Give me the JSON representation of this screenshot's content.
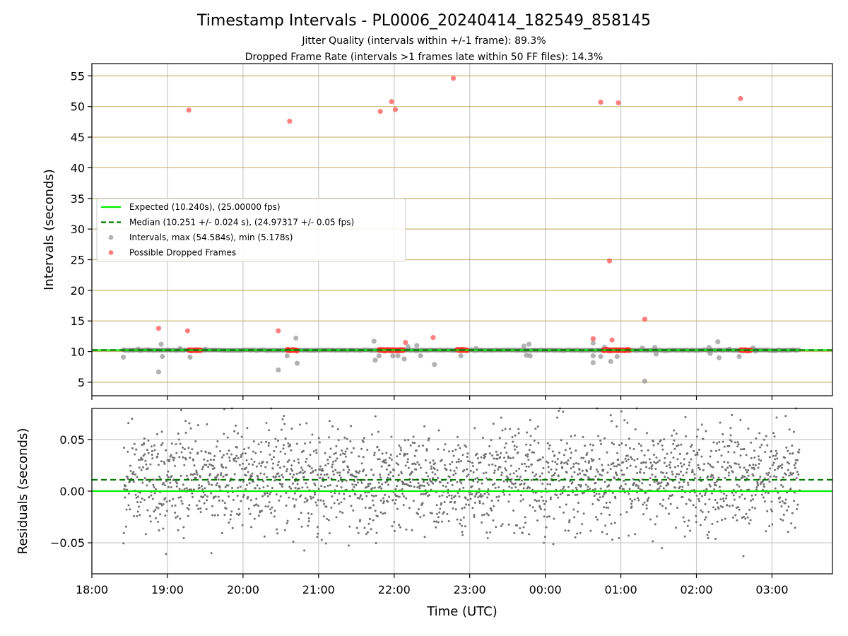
{
  "title": "Timestamp Intervals - PL0006_20240414_182549_858145",
  "subtitle_1": "Jitter Quality (intervals within +/-1 frame): 89.3%",
  "subtitle_2": "Dropped Frame Rate (intervals >1 frames late within 50 FF files): 14.3%",
  "chart_data": [
    {
      "type": "scatter",
      "panel": "top",
      "ylabel": "Intervals (seconds)",
      "xlabel": "",
      "xlim_hours": [
        18.0,
        27.8
      ],
      "ylim": [
        2.8,
        57.0
      ],
      "y_ticks": [
        5,
        10,
        15,
        20,
        25,
        30,
        35,
        40,
        45,
        50,
        55
      ],
      "y_tick_labels": [
        "5",
        "10",
        "15",
        "20",
        "25",
        "30",
        "35",
        "40",
        "45",
        "50",
        "55"
      ],
      "grid": true,
      "horizontal_grid_color": "#c8b46e",
      "legend_position": "center-left",
      "legend": [
        {
          "label": "Expected (10.240s), (25.00000 fps)",
          "kind": "line",
          "color": "#00ee00"
        },
        {
          "label": "Median (10.251 +/- 0.024 s), (24.97317 +/- 0.05 fps)",
          "kind": "dashed",
          "color": "#007a00"
        },
        {
          "label": "Intervals, max (54.584s), min (5.178s)",
          "kind": "point",
          "color": "#808080"
        },
        {
          "label": "Possible Dropped Frames",
          "kind": "point",
          "color": "#ff2a2a"
        }
      ],
      "series": [
        {
          "name": "Expected (10.240s), (25.00000 fps)",
          "kind": "hline",
          "y": 10.24,
          "color": "#00ee00"
        },
        {
          "name": "Median (10.251 +/- 0.024 s), (24.97317 +/- 0.05 fps)",
          "kind": "hline-dashed",
          "y": 10.251,
          "color": "#007a00"
        },
        {
          "name": "Intervals, max (54.584s), min (5.178s)",
          "color": "#808080",
          "dense_band": {
            "x_start": "18:25",
            "x_end": "03:22",
            "y": 10.24
          },
          "points": [
            [
              "18:25",
              9.1
            ],
            [
              "18:37",
              10.4
            ],
            [
              "18:53",
              6.7
            ],
            [
              "18:55",
              11.2
            ],
            [
              "18:56",
              9.2
            ],
            [
              "18:45",
              10.3
            ],
            [
              "19:10",
              10.5
            ],
            [
              "19:18",
              9.1
            ],
            [
              "19:30",
              10.4
            ],
            [
              "20:28",
              7.0
            ],
            [
              "20:35",
              9.3
            ],
            [
              "20:42",
              12.2
            ],
            [
              "20:43",
              8.1
            ],
            [
              "21:44",
              11.7
            ],
            [
              "21:45",
              8.6
            ],
            [
              "21:48",
              9.3
            ],
            [
              "21:59",
              9.3
            ],
            [
              "22:03",
              9.3
            ],
            [
              "22:08",
              8.8
            ],
            [
              "22:11",
              10.8
            ],
            [
              "22:18",
              11.0
            ],
            [
              "22:21",
              9.3
            ],
            [
              "22:32",
              7.9
            ],
            [
              "22:53",
              9.3
            ],
            [
              "23:05",
              10.5
            ],
            [
              "23:43",
              10.9
            ],
            [
              "23:45",
              9.4
            ],
            [
              "23:47",
              11.2
            ],
            [
              "23:48",
              9.3
            ],
            [
              "00:38",
              11.4
            ],
            [
              "00:38",
              9.3
            ],
            [
              "00:38",
              8.2
            ],
            [
              "00:44",
              9.2
            ],
            [
              "00:47",
              10.7
            ],
            [
              "00:52",
              8.4
            ],
            [
              "00:57",
              9.2
            ],
            [
              "01:17",
              10.6
            ],
            [
              "01:19",
              5.2
            ],
            [
              "01:27",
              10.7
            ],
            [
              "01:28",
              9.6
            ],
            [
              "02:10",
              10.7
            ],
            [
              "02:11",
              9.7
            ],
            [
              "02:17",
              11.6
            ],
            [
              "02:18",
              9.0
            ],
            [
              "02:26",
              10.4
            ],
            [
              "02:34",
              9.2
            ],
            [
              "02:45",
              10.6
            ],
            [
              "02:47",
              10.1
            ]
          ]
        },
        {
          "name": "Possible Dropped Frames",
          "color": "#ff2a2a",
          "clusters": [
            {
              "from": "19:17",
              "to": "19:27",
              "y": 10.24
            },
            {
              "from": "20:35",
              "to": "20:43",
              "y": 10.24
            },
            {
              "from": "21:48",
              "to": "22:08",
              "y": 10.24
            },
            {
              "from": "22:50",
              "to": "22:58",
              "y": 10.24
            },
            {
              "from": "00:46",
              "to": "01:07",
              "y": 10.24
            },
            {
              "from": "02:35",
              "to": "02:43",
              "y": 10.24
            }
          ],
          "points": [
            [
              "18:53",
              13.8
            ],
            [
              "19:17",
              49.4
            ],
            [
              "19:16",
              13.4
            ],
            [
              "20:28",
              13.4
            ],
            [
              "20:37",
              47.6
            ],
            [
              "21:49",
              49.2
            ],
            [
              "21:58",
              50.8
            ],
            [
              "22:01",
              49.5
            ],
            [
              "22:09",
              11.5
            ],
            [
              "22:31",
              12.3
            ],
            [
              "22:47",
              54.6
            ],
            [
              "00:38",
              12.1
            ],
            [
              "00:44",
              50.7
            ],
            [
              "00:51",
              24.8
            ],
            [
              "00:53",
              11.9
            ],
            [
              "00:58",
              50.6
            ],
            [
              "01:19",
              15.3
            ],
            [
              "02:35",
              51.3
            ]
          ]
        }
      ]
    },
    {
      "type": "scatter",
      "panel": "bottom",
      "ylabel": "Residuals (seconds)",
      "xlabel": "Time (UTC)",
      "xlim_hours": [
        18.0,
        27.8
      ],
      "ylim": [
        -0.08,
        0.08
      ],
      "y_ticks": [
        -0.05,
        0.0,
        0.05
      ],
      "y_tick_labels": [
        "−0.05",
        "0.00",
        "0.05"
      ],
      "x_tick_labels": [
        "18:00",
        "19:00",
        "20:00",
        "21:00",
        "22:00",
        "23:00",
        "00:00",
        "01:00",
        "02:00",
        "03:00"
      ],
      "grid": true,
      "series": [
        {
          "name": "Expected",
          "kind": "hline",
          "y": 0.0,
          "color": "#00ee00"
        },
        {
          "name": "Median",
          "kind": "hline-dashed",
          "y": 0.011,
          "color": "#007a00"
        },
        {
          "name": "Residuals",
          "color": "#707070",
          "x_start": "18:25",
          "x_end": "03:22",
          "count": 2200,
          "mean": 0.011,
          "std": 0.025,
          "range": [
            -0.08,
            0.08
          ]
        }
      ]
    }
  ]
}
